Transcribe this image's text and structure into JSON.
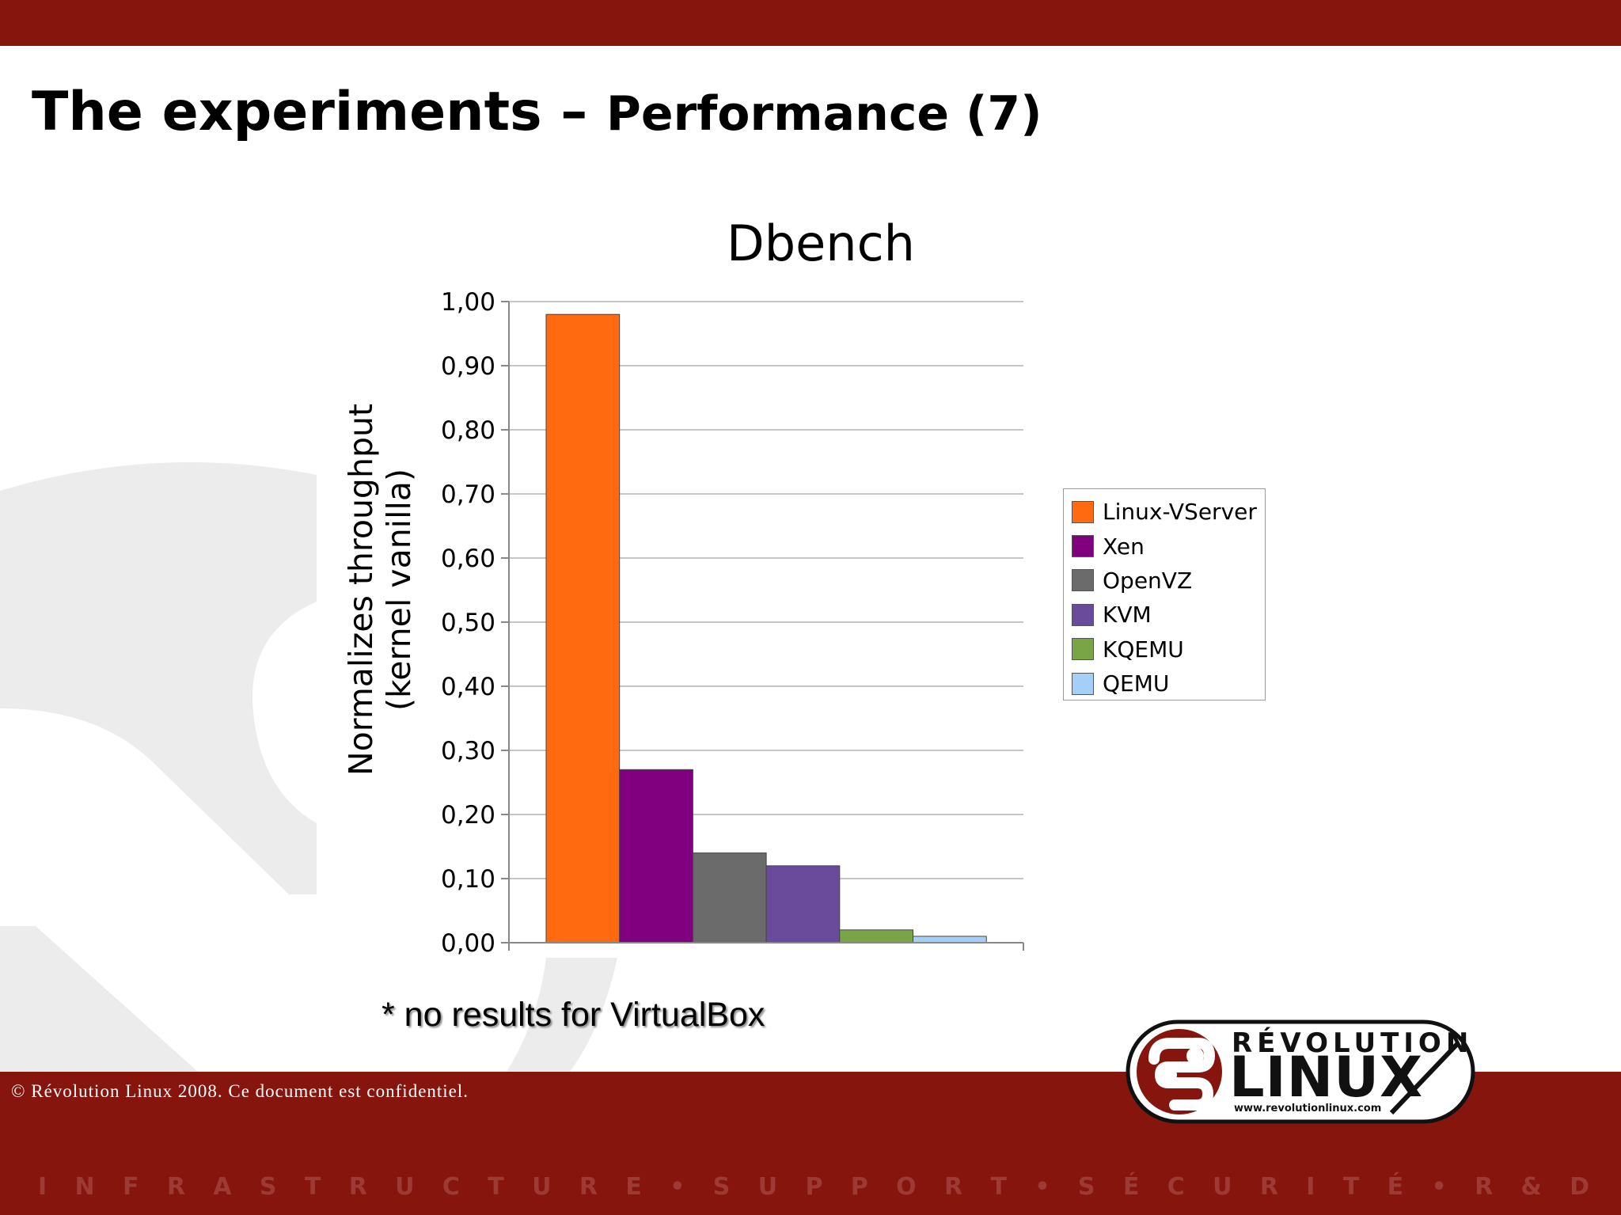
{
  "slide": {
    "title_main": "The experiments – ",
    "title_sub": "Performance (7)",
    "footnote": "* no results for VirtualBox",
    "copyright": "© Révolution Linux 2008. Ce document est confidentiel.",
    "tagline": [
      "I",
      "N",
      "F",
      "R",
      "A",
      "S",
      "T",
      "R",
      "U",
      "C",
      "T",
      "U",
      "R",
      "E",
      "•",
      "S",
      "U",
      "P",
      "P",
      "O",
      "R",
      "T",
      "•",
      "S",
      "É",
      "C",
      "U",
      "R",
      "I",
      "T",
      "É",
      "•",
      "R",
      "&",
      "D"
    ],
    "logo": {
      "top": "RÉVOLUTION",
      "main": "LINUX",
      "url": "www.revolutionlinux.com"
    }
  },
  "colors": {
    "bar_dark_red": "#86150d",
    "watermark": "#ececec"
  },
  "chart_data": {
    "type": "bar",
    "title": "Dbench",
    "ylabel_lines": [
      "Normalizes throughput",
      "(kernel vanilla)"
    ],
    "xlabel": "",
    "ylim": [
      0,
      1
    ],
    "yticks": [
      0,
      0.1,
      0.2,
      0.3,
      0.4,
      0.5,
      0.6,
      0.7,
      0.8,
      0.9,
      1.0
    ],
    "ytick_labels": [
      "0,00",
      "0,10",
      "0,20",
      "0,30",
      "0,40",
      "0,50",
      "0,60",
      "0,70",
      "0,80",
      "0,90",
      "1,00"
    ],
    "grid": true,
    "legend_position": "right",
    "series": [
      {
        "name": "Linux-VServer",
        "value": 0.98,
        "color": "#ff6a10"
      },
      {
        "name": "Xen",
        "value": 0.27,
        "color": "#800080"
      },
      {
        "name": "OpenVZ",
        "value": 0.14,
        "color": "#6b6b6b"
      },
      {
        "name": "KVM",
        "value": 0.12,
        "color": "#6a4a9a"
      },
      {
        "name": "KQEMU",
        "value": 0.02,
        "color": "#7aa547"
      },
      {
        "name": "QEMU",
        "value": 0.01,
        "color": "#a6cff7"
      }
    ]
  }
}
